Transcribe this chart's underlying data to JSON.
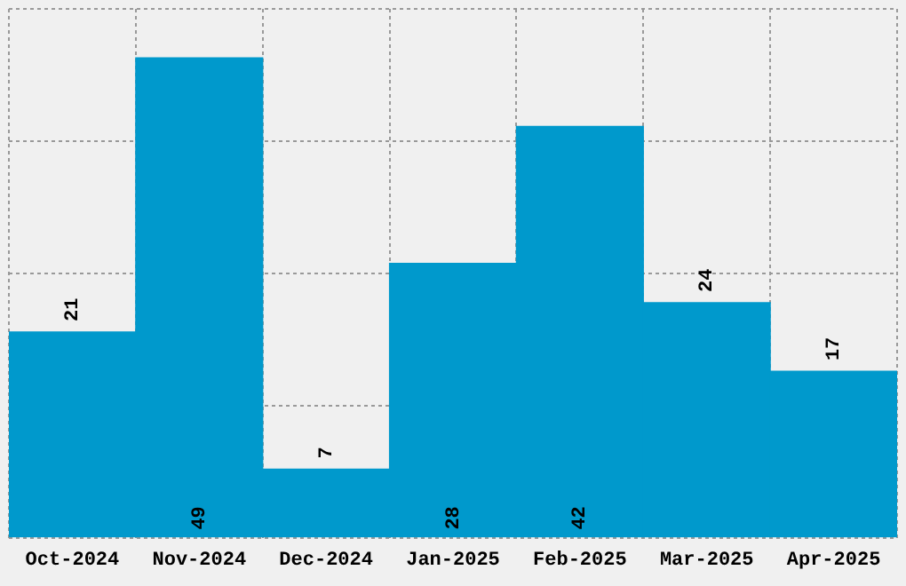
{
  "chart_data": {
    "type": "bar",
    "categories": [
      "Oct-2024",
      "Nov-2024",
      "Dec-2024",
      "Jan-2025",
      "Feb-2025",
      "Mar-2025",
      "Apr-2025"
    ],
    "values": [
      21,
      49,
      7,
      28,
      42,
      24,
      17
    ],
    "color": "#0099cc",
    "ylim": [
      0,
      54
    ],
    "yticks": [
      {
        "value": 0,
        "label": null
      },
      {
        "value": 13.5,
        "label": null
      },
      {
        "value": 27,
        "label": null
      },
      {
        "value": 40.5,
        "label": null
      },
      {
        "value": 54,
        "label": null
      }
    ],
    "grid": true,
    "data_labels": true,
    "tick_labels": "x",
    "legend": false
  }
}
